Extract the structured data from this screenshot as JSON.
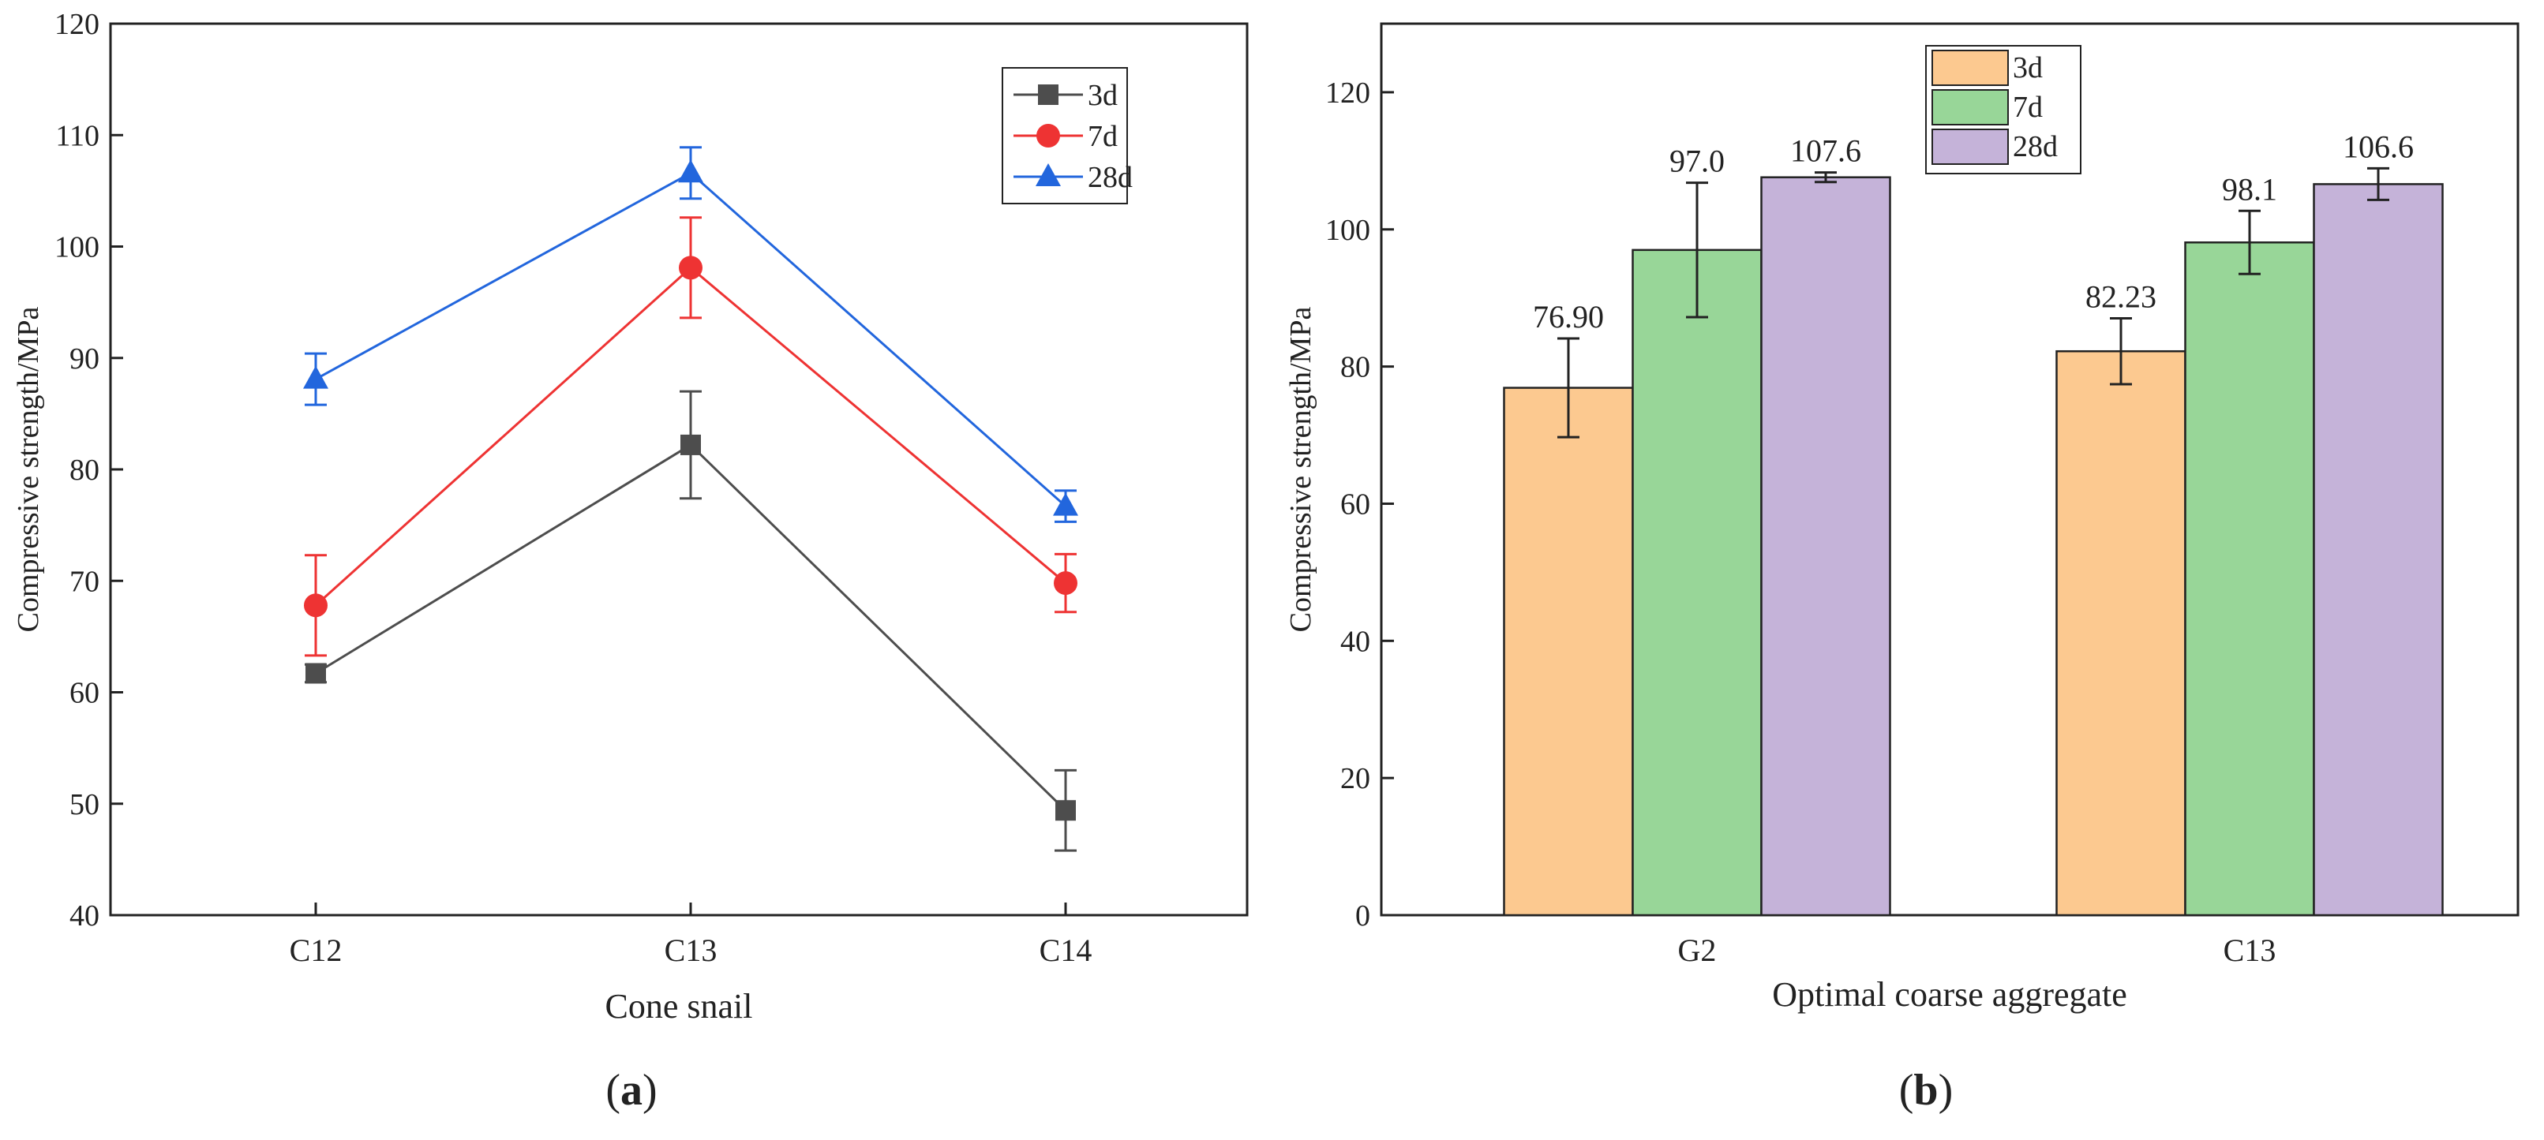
{
  "chart_data": [
    {
      "panel_label": "a",
      "type": "line",
      "xlabel": "Cone snail",
      "ylabel": "Compressive strength/MPa",
      "categories": [
        "C12",
        "C13",
        "C14"
      ],
      "ylim": [
        40,
        120
      ],
      "yticks": [
        40,
        50,
        60,
        70,
        80,
        90,
        100,
        110,
        120
      ],
      "legend_position": "top-right",
      "series": [
        {
          "name": "3d",
          "color": "#4d4d4d",
          "marker": "square",
          "values": [
            61.7,
            82.2,
            49.4
          ],
          "errors": [
            0.8,
            4.8,
            3.6
          ]
        },
        {
          "name": "7d",
          "color": "#ee3333",
          "marker": "circle",
          "values": [
            67.8,
            98.1,
            69.8
          ],
          "errors": [
            4.5,
            4.5,
            2.6
          ]
        },
        {
          "name": "28d",
          "color": "#2266dd",
          "marker": "triangle",
          "values": [
            88.1,
            106.6,
            76.7
          ],
          "errors": [
            2.3,
            2.3,
            1.4
          ]
        }
      ]
    },
    {
      "panel_label": "b",
      "type": "bar",
      "xlabel": "Optimal coarse aggregate",
      "ylabel": "Compressive strength/MPa",
      "categories": [
        "G2",
        "C13"
      ],
      "ylim": [
        0,
        130
      ],
      "yticks": [
        0,
        20,
        40,
        60,
        80,
        100,
        120
      ],
      "legend_position": "top-center",
      "series": [
        {
          "name": "3d",
          "color": "#fcc990",
          "values": [
            76.9,
            82.23
          ],
          "labels": [
            "76.90",
            "82.23"
          ],
          "errors": [
            7.2,
            4.8
          ]
        },
        {
          "name": "7d",
          "color": "#98d698",
          "values": [
            97.0,
            98.1
          ],
          "labels": [
            "97.0",
            "98.1"
          ],
          "errors": [
            9.8,
            4.6
          ]
        },
        {
          "name": "28d",
          "color": "#c5b3d9",
          "values": [
            107.6,
            106.6
          ],
          "labels": [
            "107.6",
            "106.6"
          ],
          "errors": [
            0.7,
            2.3
          ]
        }
      ]
    }
  ]
}
